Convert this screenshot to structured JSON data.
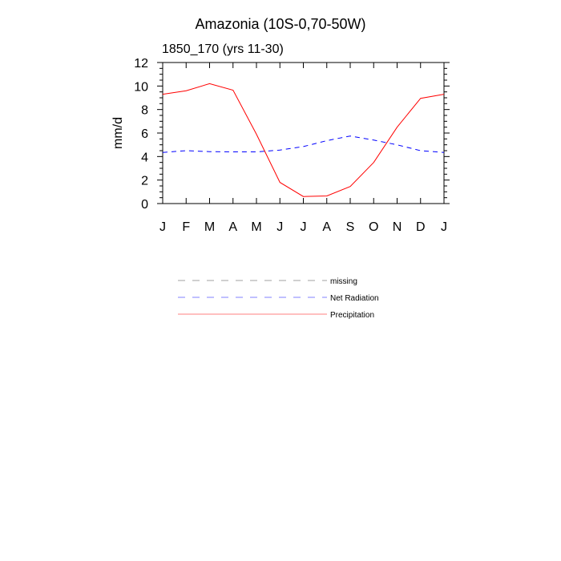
{
  "chart_data": {
    "type": "line",
    "title": "Amazonia (10S-0,70-50W)",
    "subtitle": "1850_170 (yrs 11-30)",
    "xlabel": "",
    "ylabel": "mm/d",
    "categories": [
      "J",
      "F",
      "M",
      "A",
      "M",
      "J",
      "J",
      "A",
      "S",
      "O",
      "N",
      "D",
      "J"
    ],
    "ylim": [
      0,
      12
    ],
    "yticks": [
      0,
      2,
      4,
      6,
      8,
      10,
      12
    ],
    "grid": false,
    "legend_position": "below",
    "series": [
      {
        "name": "Net Radiation",
        "color": "#0000ff",
        "style": "dashed",
        "values": [
          4.35,
          4.5,
          4.42,
          4.4,
          4.4,
          4.55,
          4.85,
          5.35,
          5.75,
          5.4,
          5.0,
          4.5,
          4.35
        ]
      },
      {
        "name": "Precipitation",
        "color": "#ff0000",
        "style": "solid",
        "values": [
          9.3,
          9.6,
          10.2,
          9.65,
          5.9,
          1.8,
          0.6,
          0.65,
          1.45,
          3.5,
          6.5,
          8.95,
          9.3
        ]
      }
    ],
    "legend": [
      {
        "label": "missing",
        "color": "#a0a0a0",
        "style": "dashed"
      },
      {
        "label": "Net Radiation",
        "color": "#8080ff",
        "style": "dashed"
      },
      {
        "label": "Precipitation",
        "color": "#ff8080",
        "style": "solid"
      }
    ]
  }
}
